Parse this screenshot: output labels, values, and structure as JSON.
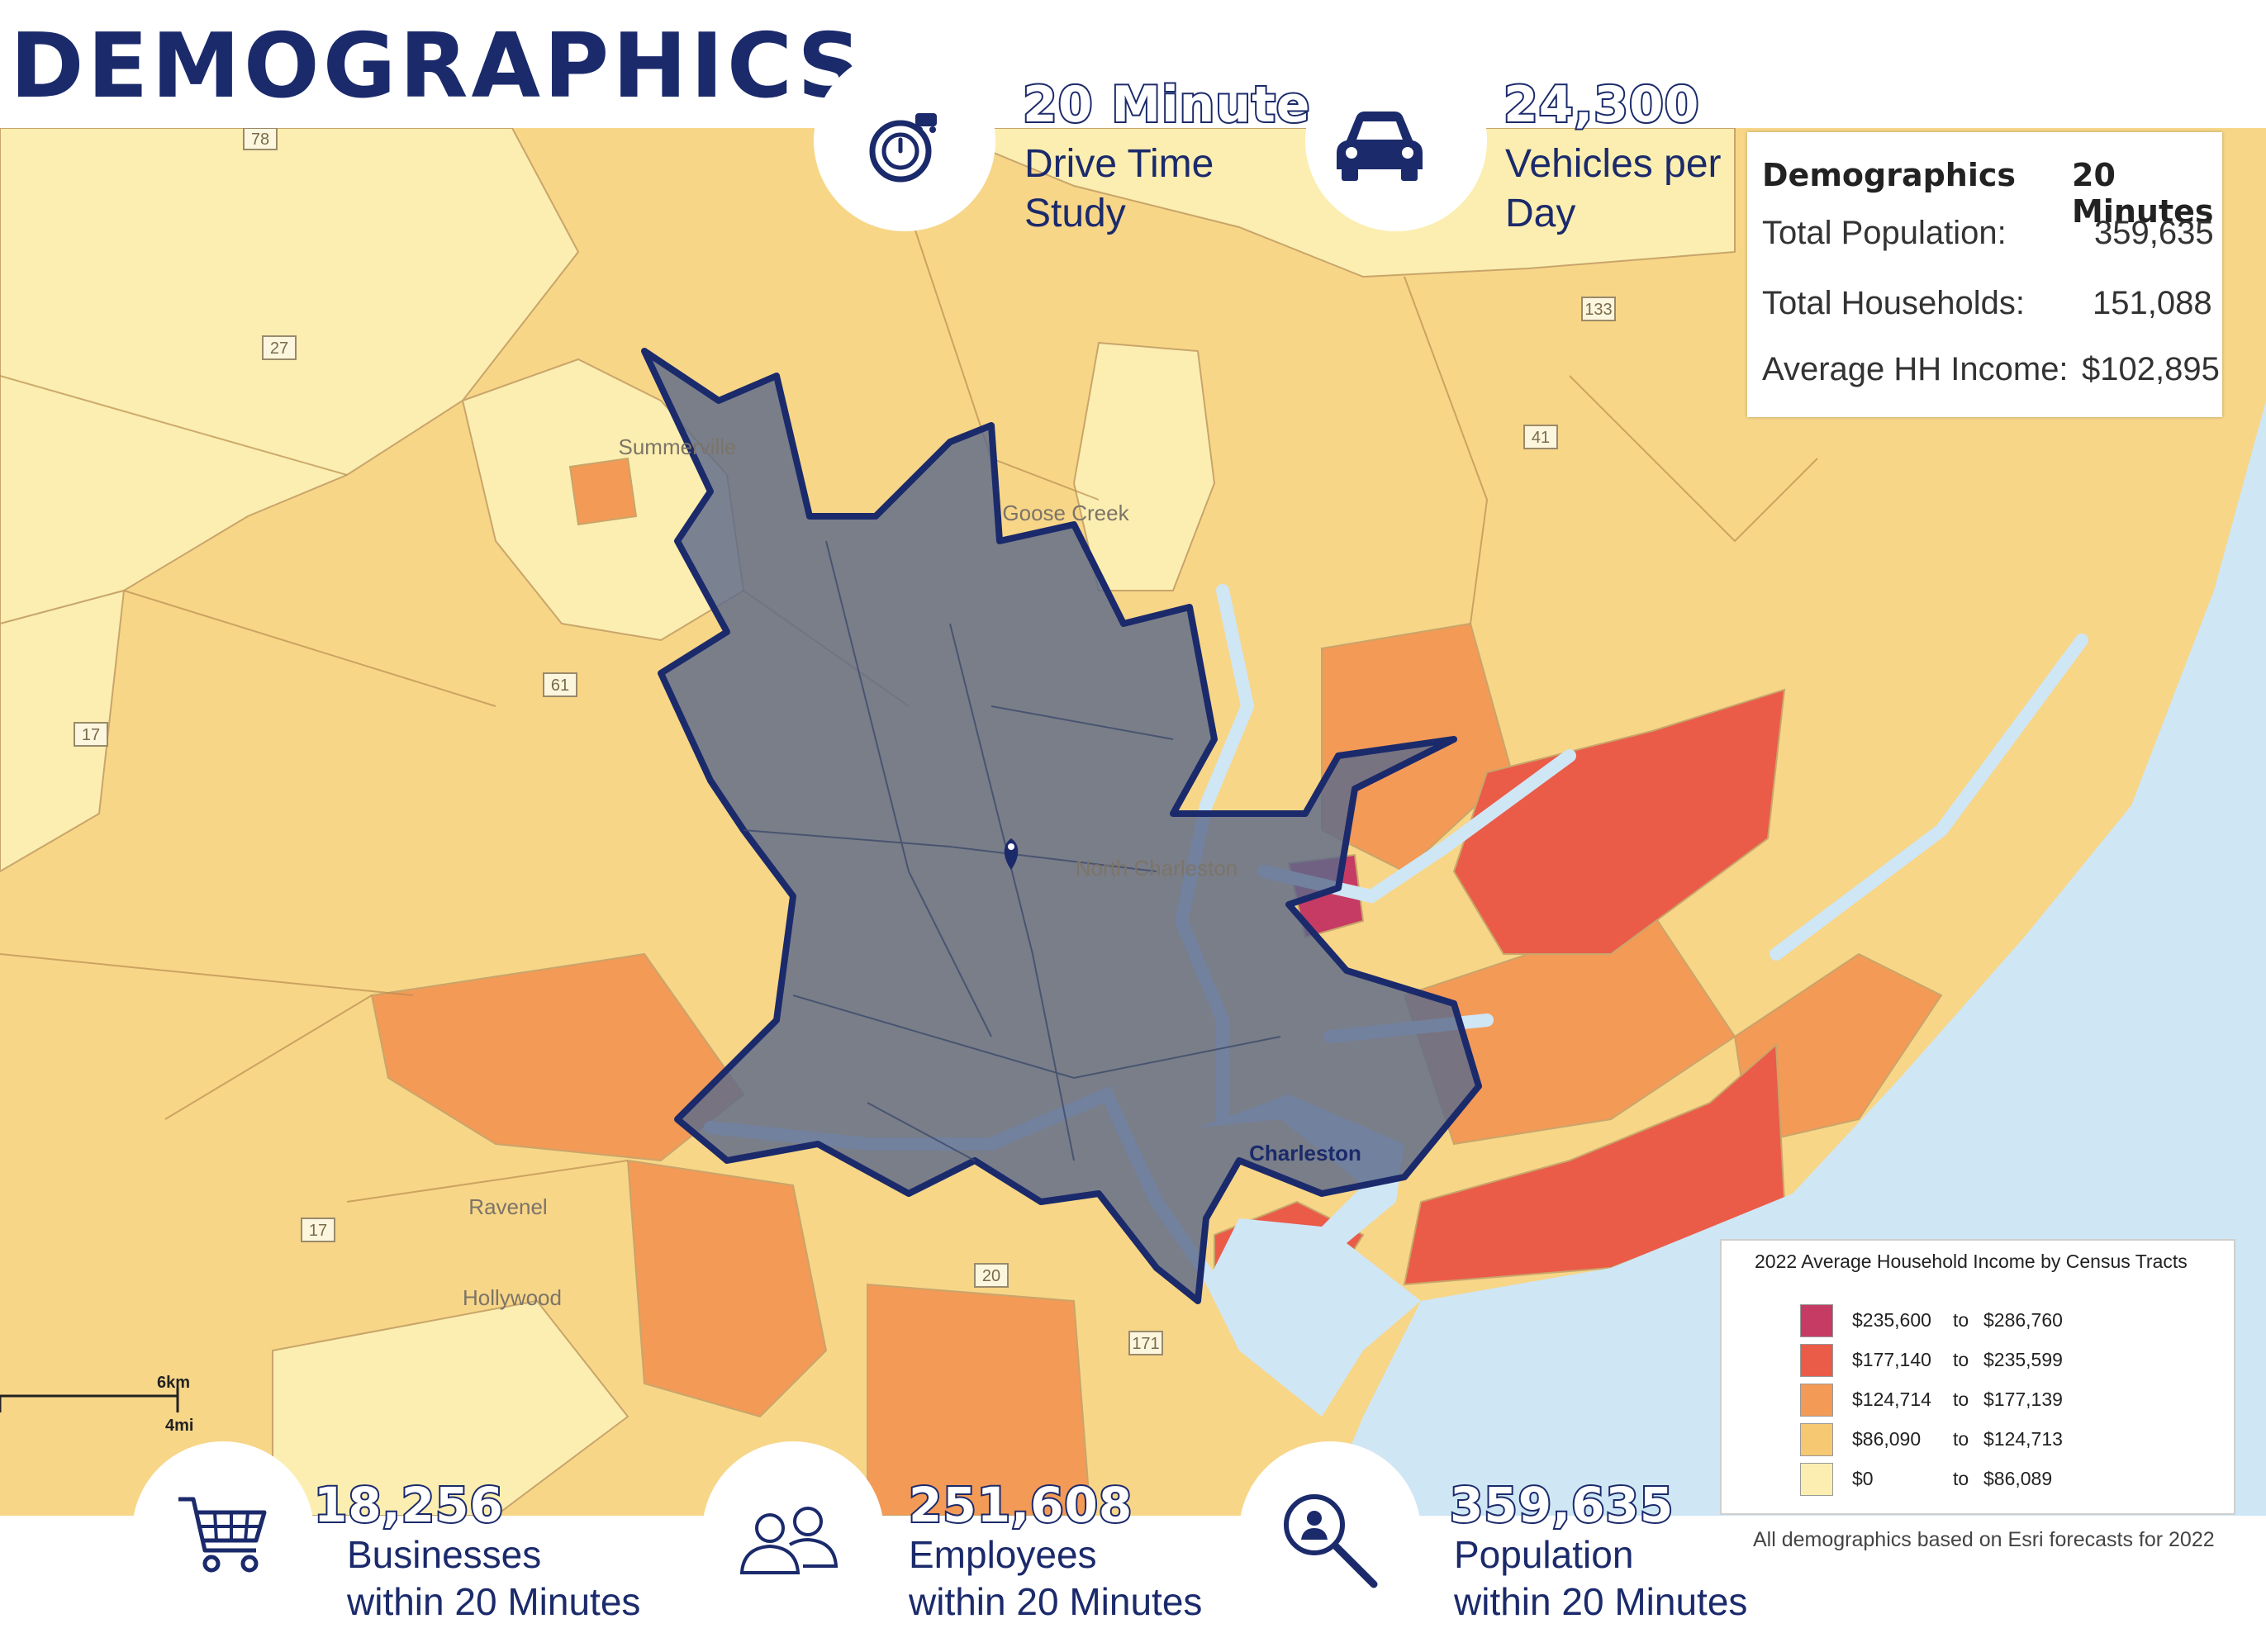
{
  "page": {
    "title": "DEMOGRAPHICS"
  },
  "stats_top": [
    {
      "id": "drive-time",
      "number": "20 Minute",
      "label_line1": "Drive Time",
      "label_line2": "Study",
      "icon": "stopwatch-icon"
    },
    {
      "id": "traffic",
      "number": "24,300",
      "label_line1": "Vehicles per",
      "label_line2": "Day",
      "icon": "car-icon"
    }
  ],
  "demographics_table": {
    "header_left": "Demographics",
    "header_right": "20 Minutes",
    "rows": [
      {
        "label": "Total Population:",
        "value": "359,635"
      },
      {
        "label": "Total Households:",
        "value": "151,088"
      },
      {
        "label": "Average HH Income:",
        "value": "$102,895"
      }
    ]
  },
  "map": {
    "place_labels": [
      "Summerville",
      "Goose Creek",
      "North Charleston",
      "Charleston",
      "Ravenel",
      "Hollywood"
    ],
    "route_shields": [
      "78",
      "27",
      "61",
      "17",
      "17",
      "133",
      "41",
      "171",
      "20"
    ],
    "scale": {
      "km": "6km",
      "mi": "4mi"
    },
    "colors": {
      "water": "#cfe6f5",
      "drive_zone": "#5d6a8a",
      "drive_outline": "#1b2a6b"
    }
  },
  "legend": {
    "title": "2022 Average Household Income by Census Tracts",
    "connector": "to",
    "classes": [
      {
        "low": "$235,600",
        "high": "$286,760",
        "color": "#c63b63"
      },
      {
        "low": "$177,140",
        "high": "$235,599",
        "color": "#ea5b48"
      },
      {
        "low": "$124,714",
        "high": "$177,139",
        "color": "#f39a57"
      },
      {
        "low": "$86,090",
        "high": "$124,713",
        "color": "#f6c872"
      },
      {
        "low": "$0",
        "high": "$86,089",
        "color": "#fbeeb0"
      }
    ]
  },
  "stats_bottom": [
    {
      "id": "businesses",
      "number": "18,256",
      "label_line1": "Businesses",
      "label_line2": "within 20 Minutes",
      "icon": "shopping-cart-icon"
    },
    {
      "id": "employees",
      "number": "251,608",
      "label_line1": "Employees",
      "label_line2": "within 20 Minutes",
      "icon": "people-icon"
    },
    {
      "id": "population",
      "number": "359,635",
      "label_line1": "Population",
      "label_line2": "within 20 Minutes",
      "icon": "magnifier-person-icon"
    }
  ],
  "footnote": "All demographics based on Esri forecasts for 2022"
}
